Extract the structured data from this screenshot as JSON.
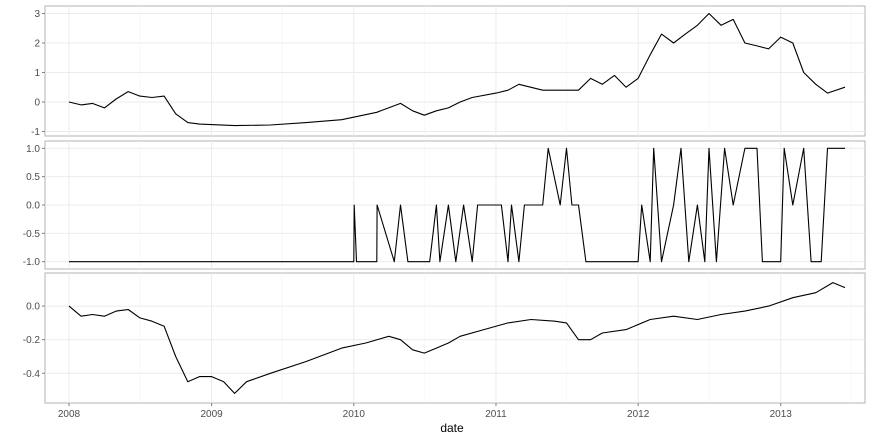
{
  "chart_data": {
    "type": "line",
    "xlabel": "date",
    "x_ticks": [
      "2008",
      "2009",
      "2010",
      "2011",
      "2012",
      "2013"
    ],
    "x_range": [
      "2008-01-01",
      "2013-06-15"
    ],
    "grid": true,
    "background": "#ffffff",
    "line_color": "#000000",
    "panels": [
      {
        "name": "top",
        "ylim": [
          -1,
          3.1
        ],
        "y_ticks": [
          -1,
          0,
          1,
          2,
          3
        ],
        "y_tick_labels": [
          "-1",
          "0",
          "1",
          "2",
          "3"
        ],
        "points": [
          [
            "2008-01-01",
            0.0
          ],
          [
            "2008-02-01",
            -0.1
          ],
          [
            "2008-03-01",
            -0.05
          ],
          [
            "2008-04-01",
            -0.2
          ],
          [
            "2008-05-01",
            0.1
          ],
          [
            "2008-06-01",
            0.35
          ],
          [
            "2008-07-01",
            0.2
          ],
          [
            "2008-08-01",
            0.15
          ],
          [
            "2008-09-01",
            0.2
          ],
          [
            "2008-10-01",
            -0.4
          ],
          [
            "2008-11-01",
            -0.7
          ],
          [
            "2008-12-01",
            -0.75
          ],
          [
            "2009-03-01",
            -0.8
          ],
          [
            "2009-06-01",
            -0.78
          ],
          [
            "2009-09-01",
            -0.7
          ],
          [
            "2009-12-01",
            -0.6
          ],
          [
            "2010-03-01",
            -0.35
          ],
          [
            "2010-05-01",
            -0.05
          ],
          [
            "2010-06-01",
            -0.3
          ],
          [
            "2010-07-01",
            -0.45
          ],
          [
            "2010-08-01",
            -0.3
          ],
          [
            "2010-09-01",
            -0.2
          ],
          [
            "2010-10-01",
            0.0
          ],
          [
            "2010-11-01",
            0.15
          ],
          [
            "2011-01-01",
            0.3
          ],
          [
            "2011-02-01",
            0.4
          ],
          [
            "2011-03-01",
            0.6
          ],
          [
            "2011-05-01",
            0.4
          ],
          [
            "2011-07-01",
            0.4
          ],
          [
            "2011-08-01",
            0.4
          ],
          [
            "2011-09-01",
            0.8
          ],
          [
            "2011-10-01",
            0.6
          ],
          [
            "2011-11-01",
            0.9
          ],
          [
            "2011-12-01",
            0.5
          ],
          [
            "2012-01-01",
            0.8
          ],
          [
            "2012-02-01",
            1.6
          ],
          [
            "2012-03-01",
            2.3
          ],
          [
            "2012-04-01",
            2.0
          ],
          [
            "2012-05-01",
            2.3
          ],
          [
            "2012-06-01",
            2.6
          ],
          [
            "2012-07-01",
            3.0
          ],
          [
            "2012-08-01",
            2.6
          ],
          [
            "2012-09-01",
            2.8
          ],
          [
            "2012-10-01",
            2.0
          ],
          [
            "2012-11-01",
            1.9
          ],
          [
            "2012-12-01",
            1.8
          ],
          [
            "2013-01-01",
            2.2
          ],
          [
            "2013-02-01",
            2.0
          ],
          [
            "2013-03-01",
            1.0
          ],
          [
            "2013-04-01",
            0.6
          ],
          [
            "2013-05-01",
            0.3
          ],
          [
            "2013-06-15",
            0.5
          ]
        ]
      },
      {
        "name": "middle",
        "ylim": [
          -1.05,
          1.05
        ],
        "y_ticks": [
          -1,
          -0.5,
          0,
          0.5,
          1
        ],
        "y_tick_labels": [
          "-1.0",
          "-0.5",
          "0.0",
          "0.5",
          "1.0"
        ],
        "points": [
          [
            "2008-01-01",
            -1
          ],
          [
            "2010-01-01",
            -1
          ],
          [
            "2010-01-02",
            0
          ],
          [
            "2010-01-08",
            -1
          ],
          [
            "2010-03-01",
            -1
          ],
          [
            "2010-03-02",
            0
          ],
          [
            "2010-04-15",
            -1
          ],
          [
            "2010-05-01",
            0
          ],
          [
            "2010-05-20",
            -1
          ],
          [
            "2010-07-15",
            -1
          ],
          [
            "2010-08-01",
            0
          ],
          [
            "2010-08-10",
            -1
          ],
          [
            "2010-09-01",
            0
          ],
          [
            "2010-09-20",
            -1
          ],
          [
            "2010-10-10",
            0
          ],
          [
            "2010-11-01",
            -1
          ],
          [
            "2010-11-15",
            0
          ],
          [
            "2011-01-15",
            0
          ],
          [
            "2011-02-01",
            -1
          ],
          [
            "2011-02-10",
            0
          ],
          [
            "2011-03-01",
            -1
          ],
          [
            "2011-03-15",
            0
          ],
          [
            "2011-05-01",
            0
          ],
          [
            "2011-05-15",
            1
          ],
          [
            "2011-06-15",
            0
          ],
          [
            "2011-07-01",
            1
          ],
          [
            "2011-07-15",
            0
          ],
          [
            "2011-08-01",
            0
          ],
          [
            "2011-08-20",
            -1
          ],
          [
            "2012-01-01",
            -1
          ],
          [
            "2012-01-10",
            0
          ],
          [
            "2012-02-01",
            -1
          ],
          [
            "2012-02-10",
            1
          ],
          [
            "2012-03-01",
            -1
          ],
          [
            "2012-04-01",
            0
          ],
          [
            "2012-04-20",
            1
          ],
          [
            "2012-05-10",
            -1
          ],
          [
            "2012-06-01",
            0
          ],
          [
            "2012-06-20",
            -1
          ],
          [
            "2012-07-01",
            1
          ],
          [
            "2012-07-20",
            -1
          ],
          [
            "2012-08-10",
            1
          ],
          [
            "2012-09-01",
            0
          ],
          [
            "2012-10-01",
            1
          ],
          [
            "2012-11-01",
            1
          ],
          [
            "2012-11-15",
            -1
          ],
          [
            "2013-01-01",
            -1
          ],
          [
            "2013-01-10",
            1
          ],
          [
            "2013-02-01",
            0
          ],
          [
            "2013-03-01",
            1
          ],
          [
            "2013-03-20",
            -1
          ],
          [
            "2013-04-15",
            -1
          ],
          [
            "2013-05-01",
            1
          ],
          [
            "2013-06-15",
            1
          ]
        ]
      },
      {
        "name": "bottom",
        "ylim": [
          -0.55,
          0.17
        ],
        "y_ticks": [
          -0.4,
          -0.2,
          0.0
        ],
        "y_tick_labels": [
          "-0.4",
          "-0.2",
          "0.0"
        ],
        "points": [
          [
            "2008-01-01",
            0.0
          ],
          [
            "2008-02-01",
            -0.06
          ],
          [
            "2008-03-01",
            -0.05
          ],
          [
            "2008-04-01",
            -0.06
          ],
          [
            "2008-05-01",
            -0.03
          ],
          [
            "2008-06-01",
            -0.02
          ],
          [
            "2008-07-01",
            -0.07
          ],
          [
            "2008-08-01",
            -0.09
          ],
          [
            "2008-09-01",
            -0.12
          ],
          [
            "2008-10-01",
            -0.3
          ],
          [
            "2008-11-01",
            -0.45
          ],
          [
            "2008-12-01",
            -0.42
          ],
          [
            "2009-01-01",
            -0.42
          ],
          [
            "2009-02-01",
            -0.45
          ],
          [
            "2009-03-01",
            -0.52
          ],
          [
            "2009-04-01",
            -0.45
          ],
          [
            "2009-06-01",
            -0.4
          ],
          [
            "2009-09-01",
            -0.33
          ],
          [
            "2009-12-01",
            -0.25
          ],
          [
            "2010-02-01",
            -0.22
          ],
          [
            "2010-04-01",
            -0.18
          ],
          [
            "2010-05-01",
            -0.2
          ],
          [
            "2010-06-01",
            -0.26
          ],
          [
            "2010-07-01",
            -0.28
          ],
          [
            "2010-08-01",
            -0.25
          ],
          [
            "2010-09-01",
            -0.22
          ],
          [
            "2010-10-01",
            -0.18
          ],
          [
            "2010-12-01",
            -0.14
          ],
          [
            "2011-02-01",
            -0.1
          ],
          [
            "2011-04-01",
            -0.08
          ],
          [
            "2011-06-01",
            -0.09
          ],
          [
            "2011-07-01",
            -0.1
          ],
          [
            "2011-08-01",
            -0.2
          ],
          [
            "2011-09-01",
            -0.2
          ],
          [
            "2011-10-01",
            -0.16
          ],
          [
            "2011-12-01",
            -0.14
          ],
          [
            "2012-02-01",
            -0.08
          ],
          [
            "2012-04-01",
            -0.06
          ],
          [
            "2012-06-01",
            -0.08
          ],
          [
            "2012-08-01",
            -0.05
          ],
          [
            "2012-10-01",
            -0.03
          ],
          [
            "2012-12-01",
            0.0
          ],
          [
            "2013-02-01",
            0.05
          ],
          [
            "2013-04-01",
            0.08
          ],
          [
            "2013-05-15",
            0.14
          ],
          [
            "2013-06-15",
            0.11
          ]
        ]
      }
    ]
  }
}
